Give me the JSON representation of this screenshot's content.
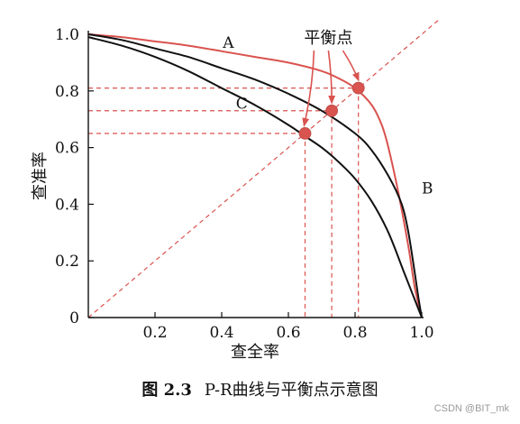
{
  "chart_data": {
    "type": "line",
    "title": "",
    "xlabel": "查全率",
    "ylabel": "查准率",
    "xlim": [
      0,
      1
    ],
    "ylim": [
      0,
      1
    ],
    "xticks": [
      "0.2",
      "0.4",
      "0.6",
      "0.8",
      "1.0"
    ],
    "yticks": [
      "0",
      "0.2",
      "0.4",
      "0.6",
      "0.8",
      "1.0"
    ],
    "grid": false,
    "series": [
      {
        "name": "A",
        "color": "#d9534f",
        "x": [
          0,
          0.1,
          0.2,
          0.3,
          0.4,
          0.5,
          0.6,
          0.7,
          0.75,
          0.8,
          0.85,
          0.88,
          0.9,
          0.93,
          0.96,
          0.98,
          1.0
        ],
        "y": [
          1.0,
          0.99,
          0.975,
          0.96,
          0.94,
          0.92,
          0.9,
          0.87,
          0.845,
          0.81,
          0.75,
          0.68,
          0.6,
          0.44,
          0.25,
          0.1,
          0
        ]
      },
      {
        "name": "B",
        "color": "#111111",
        "x": [
          0,
          0.1,
          0.2,
          0.3,
          0.4,
          0.5,
          0.6,
          0.7,
          0.8,
          0.85,
          0.9,
          0.94,
          0.96,
          0.98,
          0.99,
          1.0
        ],
        "y": [
          1.0,
          0.98,
          0.95,
          0.92,
          0.88,
          0.84,
          0.79,
          0.73,
          0.65,
          0.59,
          0.5,
          0.4,
          0.3,
          0.15,
          0.07,
          0
        ]
      },
      {
        "name": "C",
        "color": "#111111",
        "x": [
          0,
          0.1,
          0.2,
          0.3,
          0.4,
          0.5,
          0.6,
          0.65,
          0.7,
          0.75,
          0.8,
          0.85,
          0.9,
          0.95,
          1.0
        ],
        "y": [
          0.99,
          0.96,
          0.92,
          0.87,
          0.81,
          0.75,
          0.68,
          0.64,
          0.6,
          0.55,
          0.49,
          0.41,
          0.3,
          0.15,
          0
        ]
      }
    ],
    "break_even_points": [
      {
        "curve": "C",
        "x": 0.65,
        "y": 0.65
      },
      {
        "curve": "B",
        "x": 0.73,
        "y": 0.73
      },
      {
        "curve": "A",
        "x": 0.81,
        "y": 0.81
      }
    ],
    "annotation": "平衡点",
    "colors": {
      "accent": "#d9534f",
      "dashed": "#d9534f",
      "curve": "#111111"
    }
  },
  "caption": {
    "figure_number": "图 2.3",
    "text": "P-R曲线与平衡点示意图"
  },
  "watermark": "CSDN @BIT_mk"
}
